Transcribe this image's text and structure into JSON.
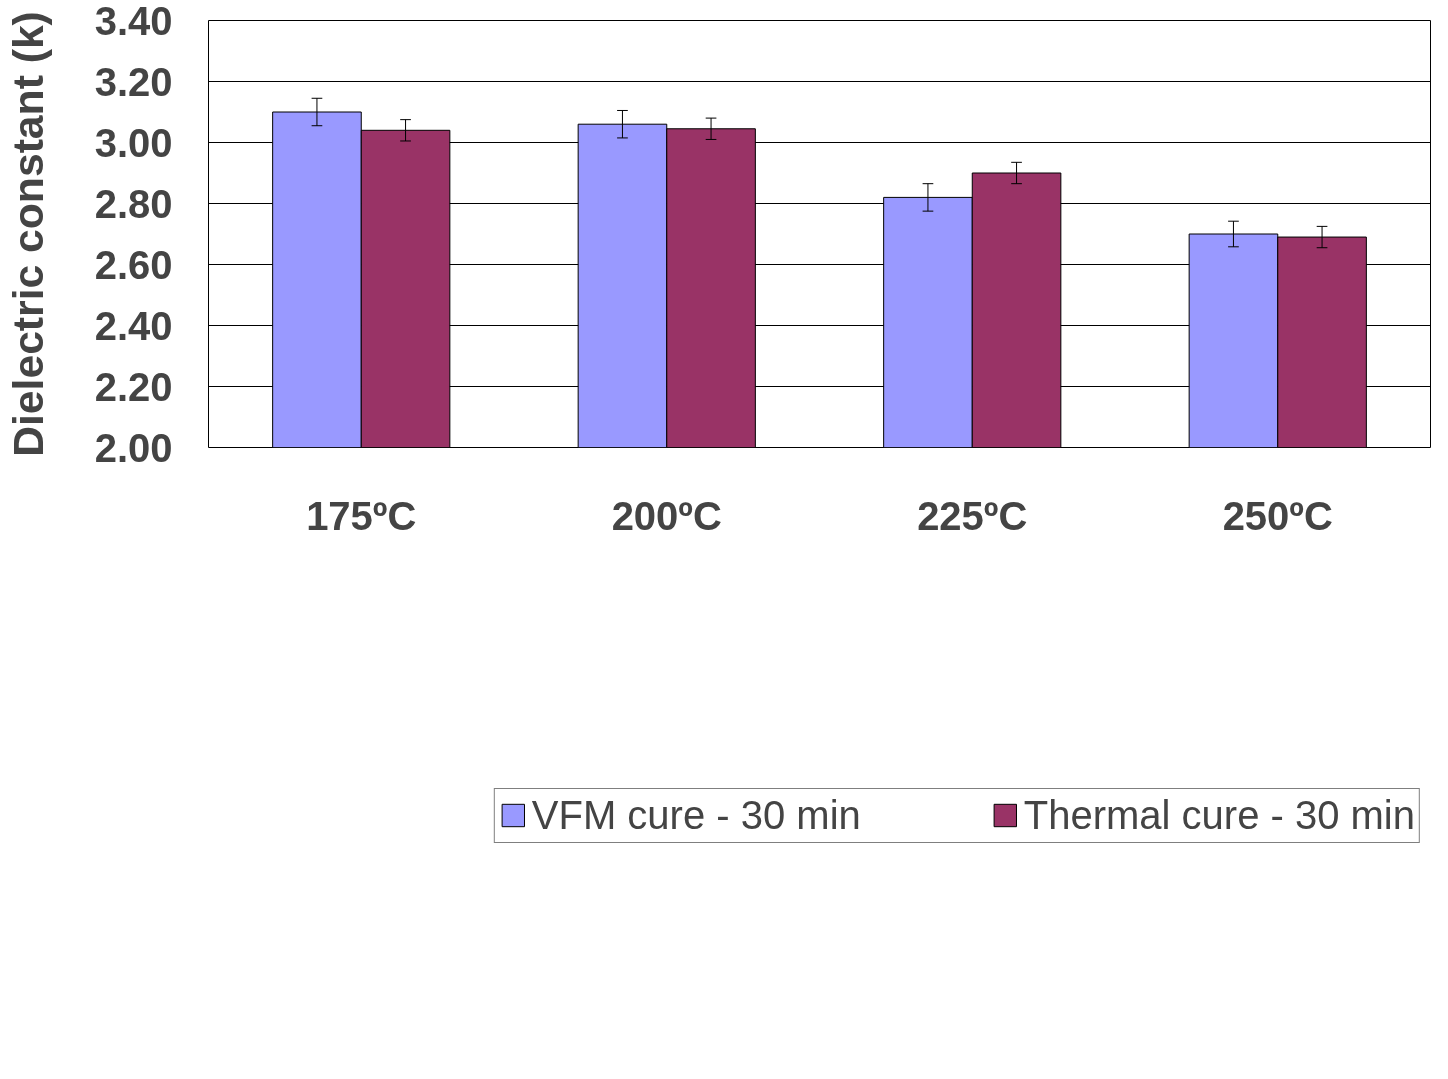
{
  "chart_data": {
    "type": "bar",
    "ylabel": "Dielectric constant (k)",
    "categories": [
      "175ºC",
      "200ºC",
      "225ºC",
      "250ºC"
    ],
    "series": [
      {
        "name": "VFM cure - 30 min",
        "color": "#9999ff",
        "values": [
          3.1,
          3.06,
          2.82,
          2.7
        ],
        "errors": [
          0.045,
          0.045,
          0.045,
          0.042
        ]
      },
      {
        "name": "Thermal cure - 30 min",
        "color": "#993366",
        "values": [
          3.04,
          3.045,
          2.9,
          2.69
        ],
        "errors": [
          0.035,
          0.035,
          0.035,
          0.035
        ]
      }
    ],
    "ylim": [
      2.0,
      3.4
    ],
    "yticks": [
      {
        "value": 2.0,
        "label": "2.00"
      },
      {
        "value": 2.2,
        "label": "2.20"
      },
      {
        "value": 2.4,
        "label": "2.40"
      },
      {
        "value": 2.6,
        "label": "2.60"
      },
      {
        "value": 2.8,
        "label": "2.80"
      },
      {
        "value": 3.0,
        "label": "3.00"
      },
      {
        "value": 3.2,
        "label": "3.20"
      },
      {
        "value": 3.4,
        "label": "3.40"
      }
    ],
    "grid": "y",
    "legend": "bottom"
  }
}
